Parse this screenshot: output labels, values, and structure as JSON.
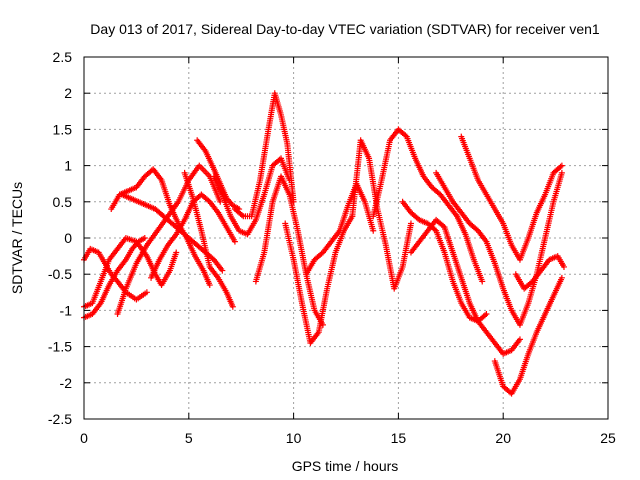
{
  "chart_data": {
    "type": "scatter",
    "title": "Day 013 of 2017, Sidereal Day-to-day VTEC variation (SDTVAR) for receiver ven1",
    "xlabel": "GPS time / hours",
    "ylabel": "SDTVAR / TECUs",
    "xlim": [
      0,
      25
    ],
    "ylim": [
      -2.5,
      2.5
    ],
    "xticks": [
      0,
      5,
      10,
      15,
      20,
      25
    ],
    "yticks": [
      -2.5,
      -2,
      -1.5,
      -1,
      -0.5,
      0,
      0.5,
      1,
      1.5,
      2,
      2.5
    ],
    "xtick_labels": [
      "0",
      "5",
      "10",
      "15",
      "20",
      "25"
    ],
    "ytick_labels": [
      "-2.5",
      "-2",
      "-1.5",
      "-1",
      "-0.5",
      "0",
      "0.5",
      "1",
      "1.5",
      "2",
      "2.5"
    ],
    "grid": true,
    "marker": "+",
    "color": "#ff0000",
    "series": [
      {
        "x": [
          0,
          0.3,
          0.7,
          1.0,
          1.3,
          1.6,
          2.0,
          2.5,
          3.0
        ],
        "y": [
          -0.3,
          -0.15,
          -0.2,
          -0.35,
          -0.5,
          -0.6,
          -0.75,
          -0.85,
          -0.75
        ]
      },
      {
        "x": [
          0,
          0.4,
          0.8,
          1.2,
          1.6,
          2.0,
          2.5,
          3.0,
          3.4,
          3.7,
          4.1,
          4.4
        ],
        "y": [
          -0.95,
          -0.9,
          -0.6,
          -0.3,
          -0.15,
          0.0,
          -0.05,
          -0.25,
          -0.5,
          -0.65,
          -0.45,
          -0.2
        ]
      },
      {
        "x": [
          0,
          0.4,
          0.8,
          1.2,
          1.6,
          2.0,
          2.3,
          2.6,
          2.9
        ],
        "y": [
          -1.1,
          -1.05,
          -0.9,
          -0.65,
          -0.45,
          -0.3,
          -0.15,
          -0.05,
          0.0
        ]
      },
      {
        "x": [
          1.6,
          2.0,
          2.5,
          3.0,
          3.5,
          4.0,
          4.5,
          5.0,
          5.5,
          6.0,
          6.5
        ],
        "y": [
          -1.05,
          -0.7,
          -0.35,
          -0.1,
          0.1,
          0.3,
          0.5,
          0.8,
          1.0,
          0.85,
          0.5
        ]
      },
      {
        "x": [
          1.3,
          1.7,
          2.1,
          2.5,
          2.9,
          3.3,
          3.7,
          4.1,
          4.5,
          4.9,
          5.3,
          5.7,
          6.0
        ],
        "y": [
          0.4,
          0.6,
          0.65,
          0.7,
          0.85,
          0.95,
          0.8,
          0.45,
          0.2,
          0.0,
          -0.25,
          -0.45,
          -0.65
        ]
      },
      {
        "x": [
          1.8,
          2.2,
          2.6,
          3.0,
          3.4,
          3.8,
          4.2,
          4.6,
          5.0,
          5.4,
          5.8,
          6.2,
          6.6
        ],
        "y": [
          0.6,
          0.55,
          0.5,
          0.45,
          0.4,
          0.3,
          0.2,
          0.1,
          0.0,
          -0.1,
          -0.2,
          -0.3,
          -0.45
        ]
      },
      {
        "x": [
          3.2,
          3.6,
          4.0,
          4.4,
          4.8,
          5.2,
          5.6,
          6.0,
          6.4,
          6.8,
          7.2
        ],
        "y": [
          -0.55,
          -0.3,
          -0.1,
          0.05,
          0.25,
          0.5,
          0.6,
          0.5,
          0.35,
          0.15,
          -0.05
        ]
      },
      {
        "x": [
          4.8,
          5.2,
          5.6,
          6.0,
          6.4,
          6.8,
          7.1
        ],
        "y": [
          0.9,
          0.55,
          0.1,
          -0.4,
          -0.55,
          -0.75,
          -0.95
        ]
      },
      {
        "x": [
          5.4,
          5.8,
          6.2,
          6.5,
          6.8,
          7.1,
          7.4
        ],
        "y": [
          1.35,
          1.2,
          0.95,
          0.75,
          0.55,
          0.45,
          0.4
        ]
      },
      {
        "x": [
          6.2,
          6.6,
          7.0,
          7.4,
          7.8,
          8.2,
          8.6,
          9.0,
          9.4,
          9.8
        ],
        "y": [
          0.85,
          0.6,
          0.3,
          0.1,
          0.05,
          0.25,
          0.6,
          1.0,
          1.1,
          0.8
        ]
      },
      {
        "x": [
          7.2,
          7.6,
          8.0,
          8.4,
          8.8,
          9.1,
          9.4,
          9.7,
          10.0
        ],
        "y": [
          0.4,
          0.3,
          0.3,
          0.8,
          1.5,
          2.0,
          1.7,
          1.3,
          0.5
        ]
      },
      {
        "x": [
          8.2,
          8.6,
          9.0,
          9.4,
          9.8,
          10.2,
          10.6,
          11.0,
          11.4
        ],
        "y": [
          -0.6,
          -0.2,
          0.5,
          0.85,
          0.6,
          0.1,
          -0.5,
          -1.0,
          -1.2
        ]
      },
      {
        "x": [
          9.6,
          10.0,
          10.4,
          10.8,
          11.2,
          11.6,
          12.0,
          12.4,
          12.8
        ],
        "y": [
          0.2,
          -0.3,
          -0.9,
          -1.45,
          -1.3,
          -0.7,
          -0.2,
          0.1,
          0.3
        ]
      },
      {
        "x": [
          10.6,
          11.0,
          11.4,
          11.8,
          12.2,
          12.6,
          13.0,
          13.4,
          13.8
        ],
        "y": [
          -0.5,
          -0.3,
          -0.2,
          -0.05,
          0.1,
          0.45,
          0.75,
          0.5,
          0.1
        ]
      },
      {
        "x": [
          12.8,
          13.2,
          13.6,
          14.0,
          14.4,
          14.8,
          15.2,
          15.6
        ],
        "y": [
          0.3,
          1.35,
          1.1,
          0.4,
          -0.1,
          -0.7,
          -0.4,
          0.2
        ]
      },
      {
        "x": [
          13.8,
          14.2,
          14.6,
          15.0,
          15.4,
          15.8,
          16.2,
          16.6,
          17.0,
          17.4,
          17.8,
          18.2,
          18.6,
          19.0
        ],
        "y": [
          0.3,
          0.8,
          1.35,
          1.5,
          1.4,
          1.1,
          0.85,
          0.7,
          0.6,
          0.45,
          0.3,
          0.05,
          -0.3,
          -0.6
        ]
      },
      {
        "x": [
          15.6,
          16.0,
          16.4,
          16.8,
          17.2,
          17.6,
          18.0,
          18.4,
          18.8,
          19.2,
          19.6,
          20.0,
          20.4,
          20.8
        ],
        "y": [
          -0.2,
          -0.05,
          0.1,
          0.25,
          0.15,
          -0.2,
          -0.55,
          -0.9,
          -1.15,
          -1.3,
          -1.45,
          -1.6,
          -1.55,
          -1.4
        ]
      },
      {
        "x": [
          15.2,
          15.6,
          16.0,
          16.4,
          16.8,
          17.2,
          17.6,
          18.0,
          18.4,
          18.8,
          19.2
        ],
        "y": [
          0.5,
          0.35,
          0.25,
          0.2,
          0.1,
          -0.2,
          -0.6,
          -0.9,
          -1.1,
          -1.15,
          -1.05
        ]
      },
      {
        "x": [
          16.8,
          17.2,
          17.6,
          18.0,
          18.4,
          18.8,
          19.2,
          19.6,
          20.0,
          20.4,
          20.8,
          21.2,
          21.6,
          22.0,
          22.4,
          22.8
        ],
        "y": [
          0.9,
          0.7,
          0.5,
          0.35,
          0.2,
          0.1,
          -0.05,
          -0.35,
          -0.7,
          -1.0,
          -1.2,
          -0.9,
          -0.5,
          0.0,
          0.5,
          0.9
        ]
      },
      {
        "x": [
          18.0,
          18.4,
          18.8,
          19.2,
          19.6,
          20.0,
          20.4,
          20.8,
          21.2,
          21.6,
          22.0,
          22.4,
          22.8
        ],
        "y": [
          1.4,
          1.1,
          0.8,
          0.6,
          0.4,
          0.2,
          -0.1,
          -0.3,
          0.0,
          0.35,
          0.6,
          0.9,
          1.0
        ]
      },
      {
        "x": [
          19.6,
          20.0,
          20.4,
          20.8,
          21.2,
          21.6,
          22.0,
          22.4,
          22.8
        ],
        "y": [
          -1.7,
          -2.05,
          -2.15,
          -1.95,
          -1.6,
          -1.3,
          -1.05,
          -0.8,
          -0.55
        ]
      },
      {
        "x": [
          20.6,
          21.0,
          21.4,
          21.8,
          22.2,
          22.6,
          22.9
        ],
        "y": [
          -0.5,
          -0.7,
          -0.6,
          -0.45,
          -0.3,
          -0.25,
          -0.4
        ]
      }
    ]
  }
}
